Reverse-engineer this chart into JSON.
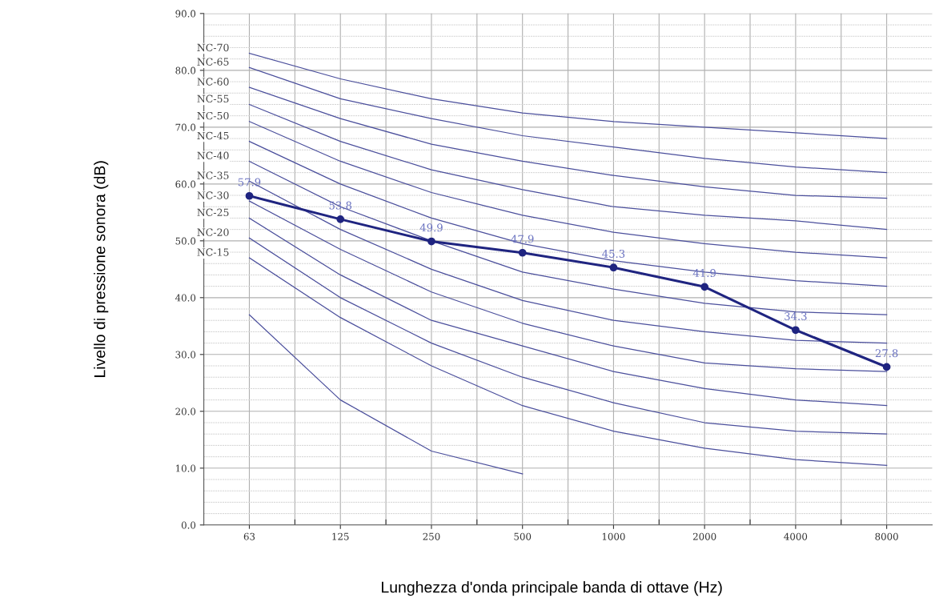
{
  "chart_data": {
    "type": "line",
    "xlabel": "Lunghezza d'onda principale banda di ottave (Hz)",
    "ylabel": "Livello di pressione sonora (dB)",
    "categories": [
      "63",
      "125",
      "250",
      "500",
      "1000",
      "2000",
      "4000",
      "8000"
    ],
    "ylim": [
      0,
      90
    ],
    "yticks": [
      {
        "value": 0,
        "label": "0.0"
      },
      {
        "value": 10,
        "label": "10.0"
      },
      {
        "value": 20,
        "label": "20.0"
      },
      {
        "value": 30,
        "label": "30.0"
      },
      {
        "value": 40,
        "label": "40.0"
      },
      {
        "value": 50,
        "label": "50.0"
      },
      {
        "value": 60,
        "label": "60.0"
      },
      {
        "value": 70,
        "label": "70.0"
      },
      {
        "value": 80,
        "label": "80.0"
      },
      {
        "value": 90,
        "label": "90.0"
      }
    ],
    "grid": true,
    "legend": false,
    "series": [
      {
        "name": "NC-70",
        "color": "#4b4f9c",
        "values": [
          83,
          78.5,
          75,
          72.5,
          71,
          70,
          69,
          68
        ]
      },
      {
        "name": "NC-65",
        "color": "#4b4f9c",
        "values": [
          80.5,
          75,
          71.5,
          68.5,
          66.5,
          64.5,
          63,
          62
        ]
      },
      {
        "name": "NC-60",
        "color": "#4b4f9c",
        "values": [
          77,
          71.5,
          67,
          64,
          61.5,
          59.5,
          58,
          57.5
        ]
      },
      {
        "name": "NC-55",
        "color": "#4b4f9c",
        "values": [
          74,
          67.5,
          62.5,
          59,
          56,
          54.5,
          53.5,
          52
        ]
      },
      {
        "name": "NC-50",
        "color": "#4b4f9c",
        "values": [
          71,
          64,
          58.5,
          54.5,
          51.5,
          49.5,
          48,
          47
        ]
      },
      {
        "name": "NC-45",
        "color": "#4b4f9c",
        "values": [
          67.5,
          60,
          54,
          49.5,
          46.5,
          44.5,
          43,
          42
        ]
      },
      {
        "name": "NC-40",
        "color": "#4b4f9c",
        "values": [
          64,
          56,
          50,
          44.5,
          41.5,
          39,
          37.5,
          37
        ]
      },
      {
        "name": "NC-35",
        "color": "#4b4f9c",
        "values": [
          60.5,
          52,
          45,
          39.5,
          36,
          34,
          32.5,
          32
        ]
      },
      {
        "name": "NC-30",
        "color": "#4b4f9c",
        "values": [
          57,
          48.5,
          41,
          35.5,
          31.5,
          28.5,
          27.5,
          27
        ]
      },
      {
        "name": "NC-25",
        "color": "#4b4f9c",
        "values": [
          54,
          44,
          36,
          31.5,
          27,
          24,
          22,
          21
        ]
      },
      {
        "name": "NC-20",
        "color": "#4b4f9c",
        "values": [
          50.5,
          40,
          32,
          26,
          21.5,
          18,
          16.5,
          16
        ]
      },
      {
        "name": "NC-15",
        "color": "#4b4f9c",
        "values": [
          47,
          36.5,
          28,
          21,
          16.5,
          13.5,
          11.5,
          10.5
        ]
      },
      {
        "color": "#4b4f9c",
        "values": [
          37,
          22,
          13,
          9,
          null,
          null,
          null,
          null
        ]
      },
      {
        "color": "#1f2480",
        "values": [
          57.9,
          53.8,
          49.9,
          47.9,
          45.3,
          41.9,
          34.3,
          27.8
        ],
        "marker": "circle",
        "data_labels": true
      }
    ]
  }
}
